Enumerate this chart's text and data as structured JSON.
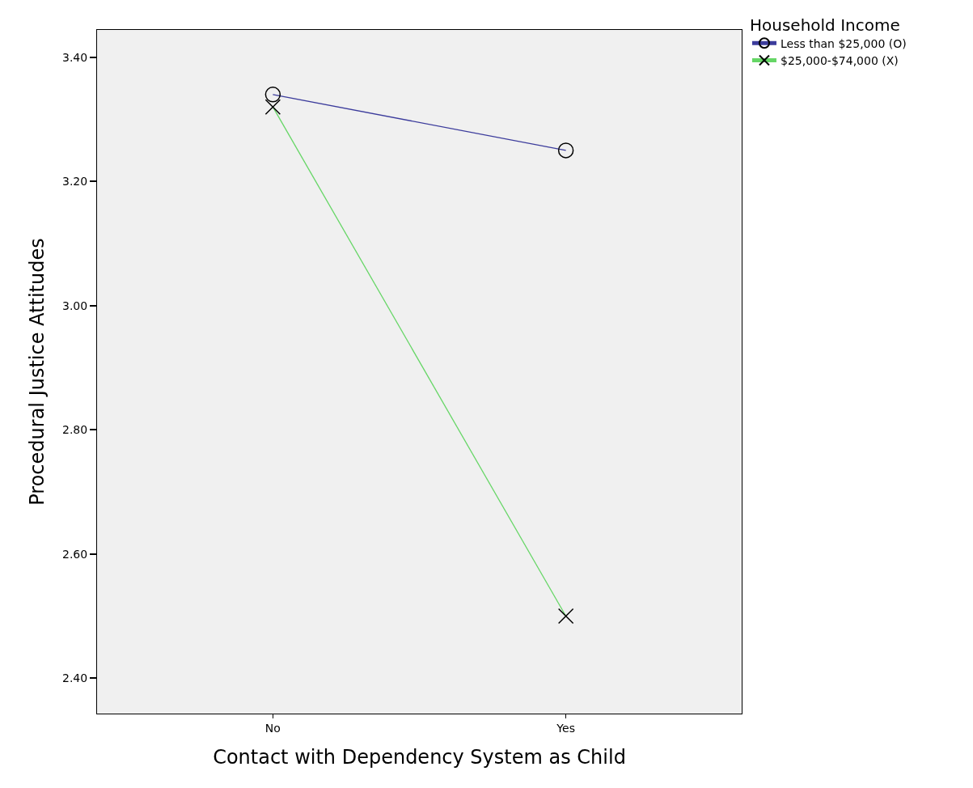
{
  "chart_data": {
    "type": "line",
    "xlabel": "Contact with Dependency System as Child",
    "ylabel": "Procedural Justice Attitudes",
    "legend_title": "Household Income",
    "categories": [
      "No",
      "Yes"
    ],
    "series": [
      {
        "name": "Less than $25,000 (O)",
        "color": "#3c3c9c",
        "values": [
          3.34,
          3.25
        ],
        "marker": "circle"
      },
      {
        "name": "$25,000-$74,000 (X)",
        "color": "#66d666",
        "values": [
          3.32,
          2.5
        ],
        "marker": "cross"
      }
    ],
    "ylim": [
      2.343,
      3.444
    ],
    "yticks": [
      {
        "value": 2.4,
        "label": "2.40"
      },
      {
        "value": 2.6,
        "label": "2.60"
      },
      {
        "value": 2.8,
        "label": "2.80"
      },
      {
        "value": 3.0,
        "label": "3.00"
      },
      {
        "value": 3.2,
        "label": "3.20"
      },
      {
        "value": 3.4,
        "label": "3.40"
      }
    ],
    "grid": false,
    "legend": "top right",
    "line_style": "solid"
  }
}
